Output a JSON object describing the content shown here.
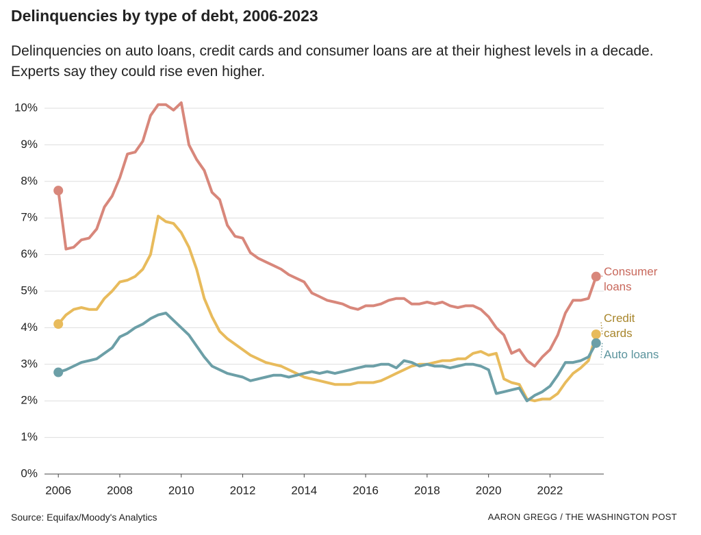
{
  "chart_data": {
    "type": "line",
    "title": "Delinquencies by type of debt, 2006-2023",
    "subtitle": "Delinquencies on auto loans, credit cards and consumer loans are at their highest levels in a decade. Experts say they could rise even higher.",
    "source": "Source: Equifax/Moody's Analytics",
    "credit": "AARON GREGG / THE WASHINGTON POST",
    "x": [
      2006,
      2006.25,
      2006.5,
      2006.75,
      2007,
      2007.25,
      2007.5,
      2007.75,
      2008,
      2008.25,
      2008.5,
      2008.75,
      2009,
      2009.25,
      2009.5,
      2009.75,
      2010,
      2010.25,
      2010.5,
      2010.75,
      2011,
      2011.25,
      2011.5,
      2011.75,
      2012,
      2012.25,
      2012.5,
      2012.75,
      2013,
      2013.25,
      2013.5,
      2013.75,
      2014,
      2014.25,
      2014.5,
      2014.75,
      2015,
      2015.25,
      2015.5,
      2015.75,
      2016,
      2016.25,
      2016.5,
      2016.75,
      2017,
      2017.25,
      2017.5,
      2017.75,
      2018,
      2018.25,
      2018.5,
      2018.75,
      2019,
      2019.25,
      2019.5,
      2019.75,
      2020,
      2020.25,
      2020.5,
      2020.75,
      2021,
      2021.25,
      2021.5,
      2021.75,
      2022,
      2022.25,
      2022.5,
      2022.75,
      2023,
      2023.25,
      2023.5
    ],
    "series": [
      {
        "name": "Consumer loans",
        "color": "#d8877b",
        "label_color": "#c8685c",
        "values": [
          7.75,
          6.15,
          6.2,
          6.4,
          6.45,
          6.7,
          7.3,
          7.6,
          8.1,
          8.75,
          8.8,
          9.1,
          9.8,
          10.1,
          10.1,
          9.95,
          10.15,
          9.0,
          8.6,
          8.3,
          7.7,
          7.5,
          6.8,
          6.5,
          6.45,
          6.05,
          5.9,
          5.8,
          5.7,
          5.6,
          5.45,
          5.35,
          5.25,
          4.95,
          4.85,
          4.75,
          4.7,
          4.65,
          4.55,
          4.5,
          4.6,
          4.6,
          4.65,
          4.75,
          4.8,
          4.8,
          4.65,
          4.65,
          4.7,
          4.65,
          4.7,
          4.6,
          4.55,
          4.6,
          4.6,
          4.5,
          4.3,
          4.0,
          3.8,
          3.3,
          3.4,
          3.1,
          2.95,
          3.2,
          3.4,
          3.8,
          4.4,
          4.75,
          4.75,
          4.8,
          5.4
        ]
      },
      {
        "name": "Credit cards",
        "color": "#e8bb5c",
        "label_color": "#a8862c",
        "values": [
          4.1,
          4.35,
          4.5,
          4.55,
          4.5,
          4.5,
          4.8,
          5.0,
          5.25,
          5.3,
          5.4,
          5.6,
          6.0,
          7.05,
          6.9,
          6.85,
          6.6,
          6.2,
          5.6,
          4.8,
          4.3,
          3.9,
          3.7,
          3.55,
          3.4,
          3.25,
          3.15,
          3.05,
          3.0,
          2.95,
          2.85,
          2.75,
          2.65,
          2.6,
          2.55,
          2.5,
          2.45,
          2.45,
          2.45,
          2.5,
          2.5,
          2.5,
          2.55,
          2.65,
          2.75,
          2.85,
          2.95,
          3.0,
          3.0,
          3.05,
          3.1,
          3.1,
          3.15,
          3.15,
          3.3,
          3.35,
          3.25,
          3.3,
          2.6,
          2.5,
          2.45,
          2.05,
          2.0,
          2.05,
          2.05,
          2.2,
          2.5,
          2.75,
          2.9,
          3.1,
          3.82
        ]
      },
      {
        "name": "Auto loans",
        "color": "#6c9fa7",
        "label_color": "#5a939c",
        "values": [
          2.78,
          2.85,
          2.95,
          3.05,
          3.1,
          3.15,
          3.3,
          3.45,
          3.75,
          3.85,
          4.0,
          4.1,
          4.25,
          4.35,
          4.4,
          4.2,
          4.0,
          3.8,
          3.5,
          3.2,
          2.95,
          2.85,
          2.75,
          2.7,
          2.65,
          2.55,
          2.6,
          2.65,
          2.7,
          2.7,
          2.65,
          2.7,
          2.75,
          2.8,
          2.75,
          2.8,
          2.75,
          2.8,
          2.85,
          2.9,
          2.95,
          2.95,
          3.0,
          3.0,
          2.9,
          3.1,
          3.05,
          2.95,
          3.0,
          2.95,
          2.95,
          2.9,
          2.95,
          3.0,
          3.0,
          2.95,
          2.85,
          2.2,
          2.25,
          2.3,
          2.35,
          2.0,
          2.15,
          2.25,
          2.4,
          2.7,
          3.05,
          3.05,
          3.1,
          3.2,
          3.58
        ]
      }
    ],
    "xlim": [
      2005.55,
      2023.75
    ],
    "xticks": [
      2006,
      2008,
      2010,
      2012,
      2014,
      2016,
      2018,
      2020,
      2022
    ],
    "ylim": [
      0,
      10
    ],
    "yticks": [
      {
        "value": 0,
        "label": "0%"
      },
      {
        "value": 1,
        "label": "1%"
      },
      {
        "value": 2,
        "label": "2%"
      },
      {
        "value": 3,
        "label": "3%"
      },
      {
        "value": 4,
        "label": "4%"
      },
      {
        "value": 5,
        "label": "5%"
      },
      {
        "value": 6,
        "label": "6%"
      },
      {
        "value": 7,
        "label": "7%"
      },
      {
        "value": 8,
        "label": "8%"
      },
      {
        "value": 9,
        "label": "9%"
      },
      {
        "value": 10,
        "label": "10%"
      }
    ],
    "grid": true
  }
}
